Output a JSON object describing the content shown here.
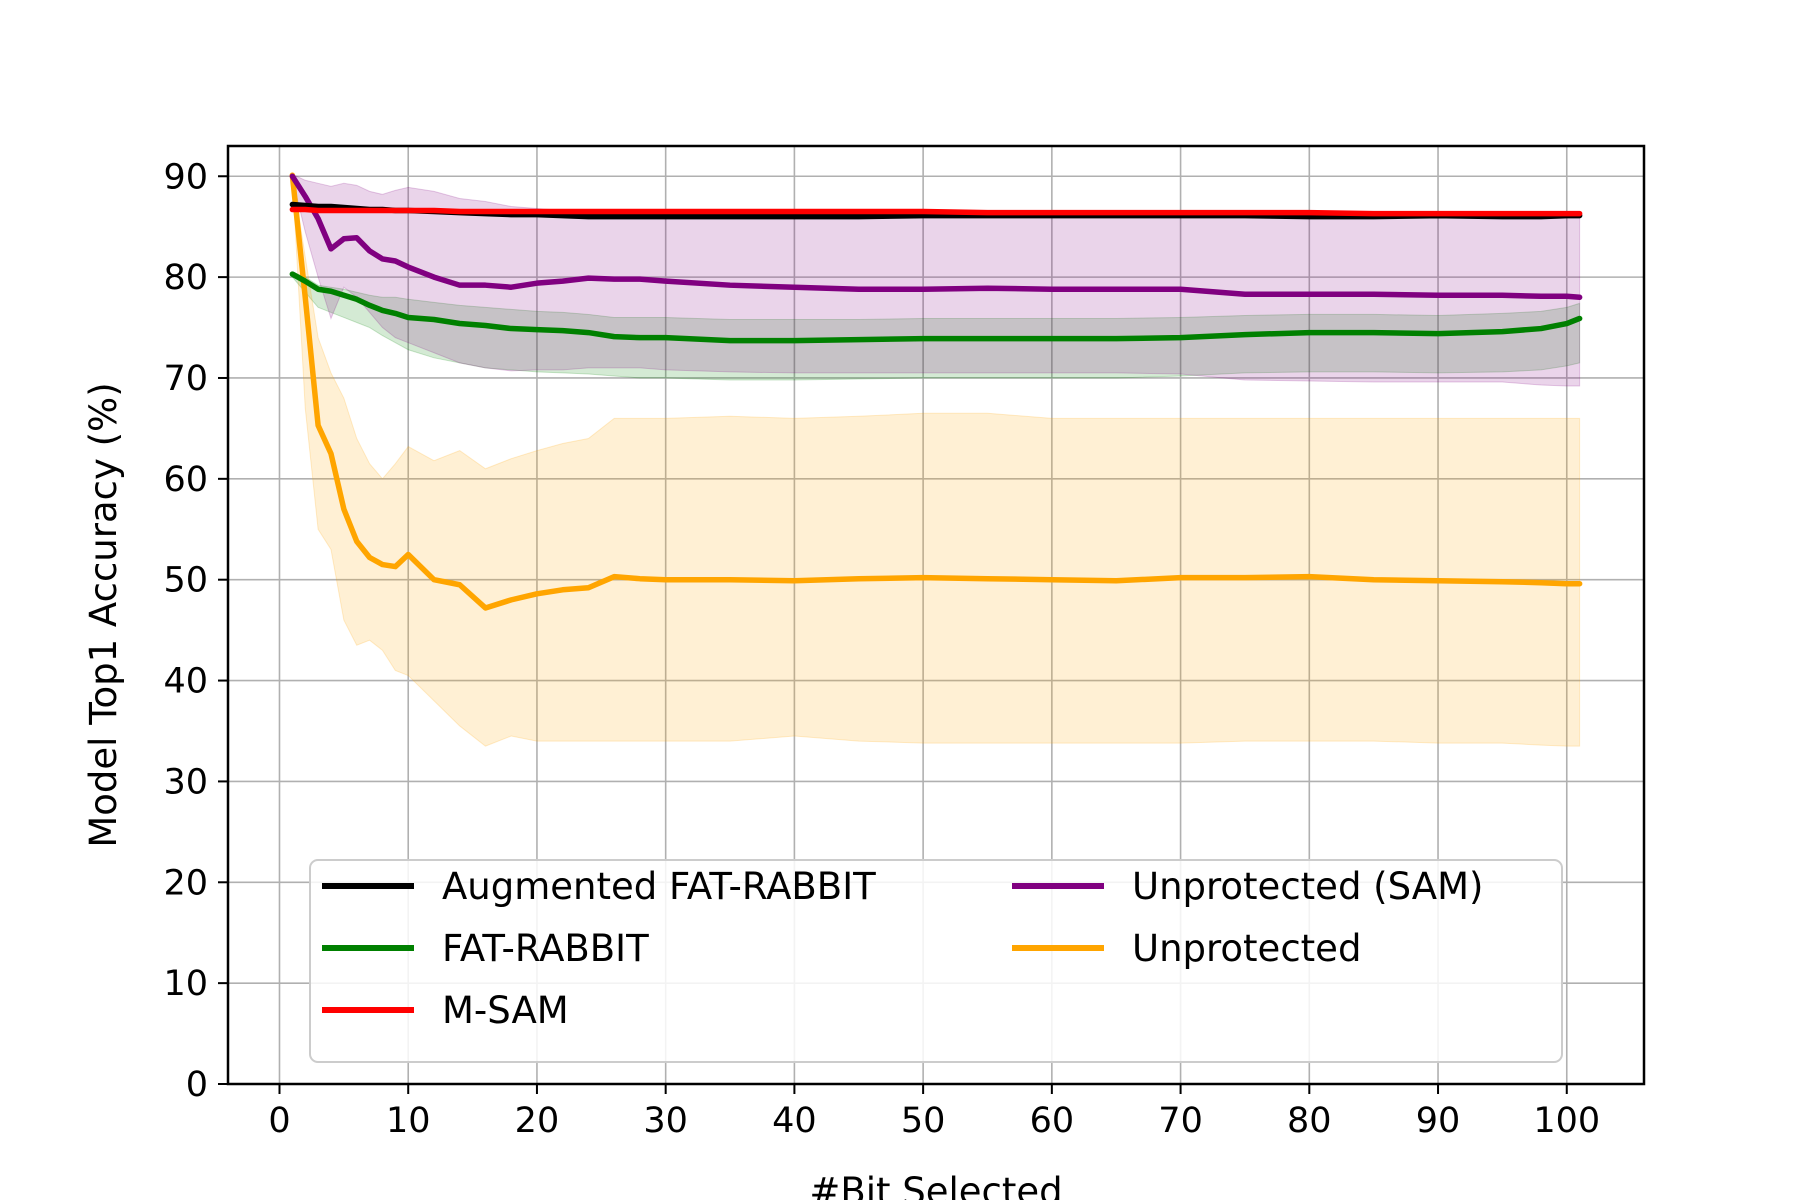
{
  "chart_data": {
    "type": "line",
    "title": "",
    "xlabel": "#Bit Selected",
    "ylabel": "Model Top1 Accuracy (%)",
    "xlim": [
      -4,
      106
    ],
    "ylim": [
      0,
      93
    ],
    "xticks": [
      0,
      10,
      20,
      30,
      40,
      50,
      60,
      70,
      80,
      90,
      100
    ],
    "yticks": [
      0,
      10,
      20,
      30,
      40,
      50,
      60,
      70,
      80,
      90
    ],
    "grid": true,
    "legend_position": "lower center, two columns",
    "x": [
      1,
      2,
      3,
      4,
      5,
      6,
      7,
      8,
      9,
      10,
      12,
      14,
      16,
      18,
      20,
      22,
      24,
      26,
      28,
      30,
      35,
      40,
      45,
      50,
      55,
      60,
      65,
      70,
      75,
      80,
      85,
      90,
      95,
      98,
      100,
      101
    ],
    "series": [
      {
        "name": "Augmented FAT-RABBIT",
        "color": "#000000",
        "values": [
          87.2,
          87.1,
          87.0,
          87.0,
          86.9,
          86.8,
          86.7,
          86.7,
          86.6,
          86.6,
          86.5,
          86.4,
          86.3,
          86.2,
          86.2,
          86.1,
          86.0,
          86.0,
          86.0,
          86.0,
          86.0,
          86.0,
          86.0,
          86.1,
          86.1,
          86.1,
          86.1,
          86.1,
          86.1,
          86.0,
          86.0,
          86.1,
          86.0,
          86.0,
          86.1,
          86.1
        ],
        "band": null
      },
      {
        "name": "FAT-RABBIT",
        "color": "#008000",
        "values": [
          80.3,
          79.6,
          78.8,
          78.6,
          78.2,
          77.8,
          77.2,
          76.7,
          76.4,
          76.0,
          75.8,
          75.4,
          75.2,
          74.9,
          74.8,
          74.7,
          74.5,
          74.1,
          74.0,
          74.0,
          73.7,
          73.7,
          73.8,
          73.9,
          73.9,
          73.9,
          73.9,
          74.0,
          74.3,
          74.5,
          74.5,
          74.4,
          74.6,
          74.9,
          75.4,
          75.9
        ],
        "band": {
          "upper": [
            80.5,
            80.0,
            79.2,
            79.0,
            78.8,
            78.5,
            78.2,
            78.0,
            78.0,
            77.8,
            77.5,
            77.2,
            77.0,
            76.8,
            76.6,
            76.5,
            76.3,
            76.0,
            76.0,
            76.0,
            75.8,
            75.8,
            75.8,
            75.9,
            75.9,
            75.9,
            75.9,
            76.0,
            76.2,
            76.3,
            76.3,
            76.2,
            76.4,
            76.6,
            77.0,
            77.4
          ],
          "lower": [
            80.0,
            78.5,
            77.0,
            76.5,
            76.0,
            75.5,
            75.0,
            74.2,
            73.5,
            72.8,
            72.0,
            71.5,
            71.0,
            70.8,
            70.6,
            70.5,
            70.4,
            70.2,
            70.0,
            70.0,
            69.8,
            69.8,
            69.9,
            70.0,
            70.0,
            70.0,
            70.0,
            70.2,
            70.5,
            70.6,
            70.6,
            70.5,
            70.6,
            70.8,
            71.2,
            71.5
          ]
        }
      },
      {
        "name": "M-SAM",
        "color": "#ff0000",
        "values": [
          86.7,
          86.7,
          86.6,
          86.6,
          86.6,
          86.6,
          86.6,
          86.6,
          86.6,
          86.6,
          86.6,
          86.5,
          86.5,
          86.5,
          86.5,
          86.5,
          86.5,
          86.5,
          86.5,
          86.5,
          86.5,
          86.5,
          86.5,
          86.5,
          86.4,
          86.4,
          86.4,
          86.4,
          86.4,
          86.4,
          86.3,
          86.3,
          86.3,
          86.3,
          86.3,
          86.3
        ],
        "band": null
      },
      {
        "name": "Unprotected (SAM)",
        "color": "#800080",
        "values": [
          90.0,
          88.0,
          85.8,
          82.8,
          83.8,
          83.9,
          82.6,
          81.8,
          81.6,
          81.0,
          80.0,
          79.2,
          79.2,
          79.0,
          79.4,
          79.6,
          79.9,
          79.8,
          79.8,
          79.6,
          79.2,
          79.0,
          78.8,
          78.8,
          78.9,
          78.8,
          78.8,
          78.8,
          78.3,
          78.3,
          78.3,
          78.2,
          78.2,
          78.1,
          78.1,
          78.0
        ],
        "band": {
          "upper": [
            90.2,
            89.6,
            89.3,
            89.0,
            89.3,
            89.1,
            88.5,
            88.2,
            88.6,
            88.9,
            88.5,
            87.8,
            87.5,
            87.0,
            86.8,
            86.6,
            86.5,
            86.5,
            86.5,
            86.4,
            86.3,
            86.3,
            86.2,
            86.2,
            86.2,
            86.2,
            86.2,
            86.2,
            86.2,
            86.1,
            86.1,
            86.1,
            86.0,
            86.0,
            86.0,
            86.0
          ],
          "lower": [
            89.8,
            84.5,
            80.0,
            75.9,
            79.0,
            78.0,
            76.5,
            75.0,
            74.0,
            73.5,
            72.5,
            71.5,
            71.0,
            70.7,
            70.8,
            70.8,
            71.0,
            71.0,
            71.0,
            70.8,
            70.6,
            70.5,
            70.5,
            70.5,
            70.5,
            70.5,
            70.5,
            70.4,
            69.8,
            69.7,
            69.6,
            69.6,
            69.6,
            69.3,
            69.2,
            69.2
          ]
        }
      },
      {
        "name": "Unprotected",
        "color": "#ffa500",
        "values": [
          90.1,
          78.0,
          65.3,
          62.5,
          57.0,
          53.8,
          52.2,
          51.5,
          51.3,
          52.5,
          50.0,
          49.5,
          47.2,
          48.0,
          48.6,
          49.0,
          49.2,
          50.3,
          50.1,
          50.0,
          50.0,
          49.9,
          50.1,
          50.2,
          50.1,
          50.0,
          49.9,
          50.2,
          50.2,
          50.3,
          50.0,
          49.9,
          49.8,
          49.7,
          49.6,
          49.6
        ],
        "band": {
          "upper": [
            90.3,
            82.0,
            74.0,
            70.5,
            68.0,
            64.0,
            61.5,
            60.0,
            61.5,
            63.2,
            61.8,
            62.8,
            61.0,
            62.0,
            62.8,
            63.5,
            64.0,
            66.0,
            66.0,
            66.0,
            66.2,
            66.0,
            66.2,
            66.5,
            66.5,
            66.0,
            66.0,
            66.0,
            66.0,
            66.0,
            66.0,
            66.0,
            66.0,
            66.0,
            66.0,
            66.0
          ],
          "lower": [
            89.9,
            67.0,
            55.0,
            53.0,
            46.0,
            43.5,
            44.0,
            43.0,
            41.0,
            40.5,
            38.0,
            35.5,
            33.5,
            34.5,
            34.0,
            34.0,
            34.0,
            34.0,
            34.0,
            34.0,
            34.0,
            34.5,
            34.0,
            33.8,
            33.8,
            33.8,
            33.8,
            33.8,
            34.0,
            34.0,
            34.0,
            33.8,
            33.8,
            33.6,
            33.5,
            33.5
          ]
        }
      }
    ]
  }
}
